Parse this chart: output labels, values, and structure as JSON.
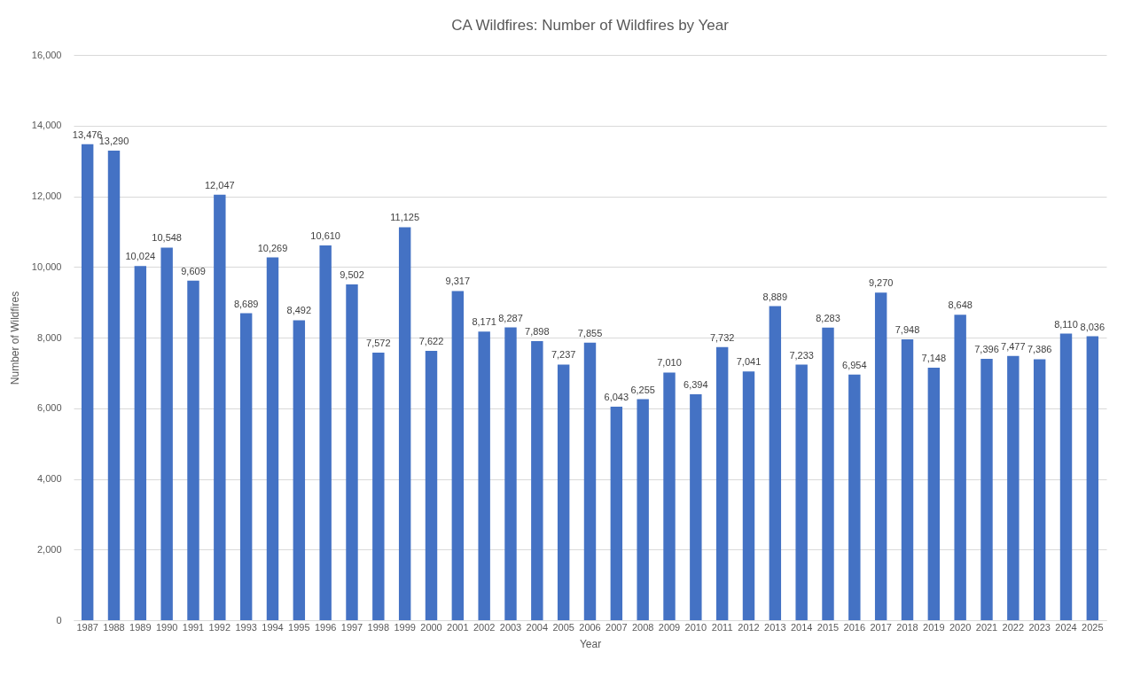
{
  "chart_data": {
    "type": "bar",
    "title": "CA Wildfires: Number of Wildfires by Year",
    "xlabel": "Year",
    "ylabel": "Number of Wildfires",
    "categories": [
      "1987",
      "1988",
      "1989",
      "1990",
      "1991",
      "1992",
      "1993",
      "1994",
      "1995",
      "1996",
      "1997",
      "1998",
      "1999",
      "2000",
      "2001",
      "2002",
      "2003",
      "2004",
      "2005",
      "2006",
      "2007",
      "2008",
      "2009",
      "2010",
      "2011",
      "2012",
      "2013",
      "2014",
      "2015",
      "2016",
      "2017",
      "2018",
      "2019",
      "2020",
      "2021",
      "2022",
      "2023",
      "2024",
      "2025"
    ],
    "values": [
      13476,
      13290,
      10024,
      10548,
      9609,
      12047,
      8689,
      10269,
      8492,
      10610,
      9502,
      7572,
      11125,
      7622,
      9317,
      8171,
      8287,
      7898,
      7237,
      7855,
      6043,
      6255,
      7010,
      6394,
      7732,
      7041,
      8889,
      7233,
      8283,
      6954,
      9270,
      7948,
      7148,
      8648,
      7396,
      7477,
      7386,
      8110,
      8036
    ],
    "value_labels": [
      "13,476",
      "13,290",
      "10,024",
      "10,548",
      "9,609",
      "12,047",
      "8,689",
      "10,269",
      "8,492",
      "10,610",
      "9,502",
      "7,572",
      "11,125",
      "7,622",
      "9,317",
      "8,171",
      "8,287",
      "7,898",
      "7,237",
      "7,855",
      "6,043",
      "6,255",
      "7,010",
      "6,394",
      "7,732",
      "7,041",
      "8,889",
      "7,233",
      "8,283",
      "6,954",
      "9,270",
      "7,948",
      "7,148",
      "8,648",
      "7,396",
      "7,477",
      "7,386",
      "8,110",
      "8,036"
    ],
    "color": "#4472c4",
    "ylim": [
      0,
      16000
    ],
    "yticks": [
      0,
      {
        "value": 2000,
        "label": "2,000"
      },
      {
        "value": 4000,
        "label": "4,000"
      },
      {
        "value": 6000,
        "label": "6,000"
      },
      {
        "value": 8000,
        "label": "8,000"
      },
      {
        "value": 10000,
        "label": "10,000"
      },
      {
        "value": 12000,
        "label": "12,000"
      },
      {
        "value": 14000,
        "label": "14,000"
      },
      {
        "value": 16000,
        "label": "16,000"
      }
    ],
    "grid": "y"
  }
}
